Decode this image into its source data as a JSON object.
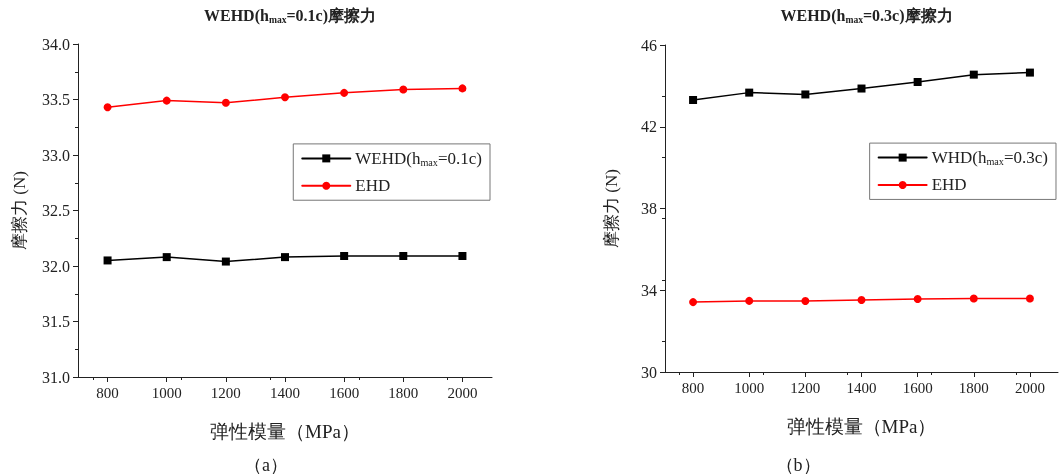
{
  "chart_data": [
    {
      "type": "line",
      "title": "WEHD(h$_{max}$=0.1c)摩擦力",
      "xlabel": "弹性模量（MPa）",
      "ylabel": "摩擦力 (N)",
      "annotations": [
        "（a）"
      ],
      "x": [
        800,
        1000,
        1200,
        1400,
        1600,
        1800,
        2000
      ],
      "series": [
        {
          "name": "WEHD(h$_{max}$=0.1c)",
          "color": "#000000",
          "marker": "square",
          "values": [
            32.05,
            32.08,
            32.04,
            32.08,
            32.09,
            32.09,
            32.09
          ]
        },
        {
          "name": "EHD",
          "color": "#ff0000",
          "marker": "circle",
          "values": [
            33.43,
            33.49,
            33.47,
            33.52,
            33.56,
            33.59,
            33.6
          ]
        }
      ],
      "xlim": [
        700,
        2100
      ],
      "xticks": [
        800,
        1000,
        1200,
        1400,
        1600,
        1800,
        2000
      ],
      "ylim": [
        31,
        34
      ],
      "yticks": [
        {
          "value": 31,
          "label": "31.0"
        },
        31.5,
        {
          "value": 32,
          "label": "32.0"
        },
        32.5,
        {
          "value": 33,
          "label": "33.0"
        },
        33.5,
        {
          "value": 34,
          "label": "34.0"
        }
      ],
      "legend": "right",
      "grid": false
    },
    {
      "type": "line",
      "title": "WEHD(h$_{max}$=0.3c)摩擦力",
      "xlabel": "弹性模量（MPa）",
      "ylabel": "摩擦力 (N)",
      "annotations": [
        "（b）"
      ],
      "x": [
        800,
        1000,
        1200,
        1400,
        1600,
        1800,
        2000
      ],
      "series": [
        {
          "name": "WHD(h$_{max}$=0.3c)",
          "color": "#000000",
          "marker": "square",
          "values": [
            43.31,
            43.67,
            43.58,
            43.87,
            44.19,
            44.55,
            44.65
          ]
        },
        {
          "name": "EHD",
          "color": "#ff0000",
          "marker": "circle",
          "values": [
            33.42,
            33.48,
            33.47,
            33.52,
            33.57,
            33.6,
            33.6
          ]
        }
      ],
      "xlim": [
        700,
        2100
      ],
      "xticks": [
        800,
        1000,
        1200,
        1400,
        1600,
        1800,
        2000
      ],
      "ylim": [
        30,
        46
      ],
      "yticks": [
        30,
        34,
        38,
        42,
        46
      ],
      "legend": "right",
      "grid": false
    }
  ]
}
